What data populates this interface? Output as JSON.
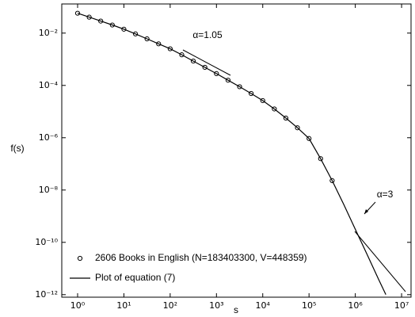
{
  "chart_data": {
    "type": "line",
    "xlabel": "s",
    "ylabel": "f(s)",
    "log_x": true,
    "log_y": true,
    "xlim": [
      0.455,
      16000000
    ],
    "ylim": [
      8e-13,
      0.13
    ],
    "xticks": [
      {
        "value": 1,
        "label": "10⁰"
      },
      {
        "value": 10,
        "label": "10¹"
      },
      {
        "value": 100,
        "label": "10²"
      },
      {
        "value": 1000,
        "label": "10³"
      },
      {
        "value": 10000,
        "label": "10⁴"
      },
      {
        "value": 100000,
        "label": "10⁵"
      },
      {
        "value": 1000000,
        "label": "10⁶"
      },
      {
        "value": 10000000,
        "label": "10⁷"
      }
    ],
    "yticks": [
      {
        "value": 1e-12,
        "label": "10⁻¹²"
      },
      {
        "value": 1e-10,
        "label": "10⁻¹⁰"
      },
      {
        "value": 1e-08,
        "label": "10⁻⁸"
      },
      {
        "value": 1e-06,
        "label": "10⁻⁶"
      },
      {
        "value": 0.0001,
        "label": "10⁻⁴"
      },
      {
        "value": 0.01,
        "label": "10⁻²"
      }
    ],
    "legend": "lower left",
    "series": [
      {
        "name": "2606 Books in English (N=183403300, V=448359)",
        "color": "#000000",
        "mode": "markers",
        "x": [
          1,
          1.78,
          3.16,
          5.62,
          10,
          17.8,
          31.6,
          56.2,
          100,
          178,
          316,
          562,
          1000,
          1780,
          3160,
          5620,
          10000,
          17800,
          31600,
          56200,
          100000,
          178000,
          316000
        ],
        "values": [
          0.0575,
          0.0407,
          0.0288,
          0.0204,
          0.0141,
          0.00933,
          0.00603,
          0.00389,
          0.00251,
          0.00148,
          0.000851,
          0.00049,
          0.000282,
          0.000158,
          8.91e-05,
          4.9e-05,
          2.63e-05,
          1.26e-05,
          5.62e-06,
          2.4e-06,
          9.33e-07,
          1.58e-07,
          2.29e-08
        ]
      },
      {
        "name": "Plot of equation (7)",
        "color": "#000000",
        "mode": "line",
        "x": [
          1,
          1.78,
          3.16,
          5.62,
          10,
          17.8,
          31.6,
          56.2,
          100,
          178,
          316,
          562,
          1000,
          1780,
          3160,
          5620,
          10000,
          17800,
          31600,
          56200,
          100000,
          178000,
          316000,
          562000,
          1000000,
          1780000,
          3160000,
          4570000
        ],
        "values": [
          0.0575,
          0.0407,
          0.0288,
          0.0204,
          0.0141,
          0.00933,
          0.00603,
          0.00389,
          0.00251,
          0.00148,
          0.000851,
          0.00049,
          0.000282,
          0.000158,
          8.91e-05,
          4.9e-05,
          2.63e-05,
          1.26e-05,
          5.62e-06,
          2.4e-06,
          9.33e-07,
          1.58e-07,
          2.29e-08,
          2.82e-09,
          3.16e-10,
          3.55e-11,
          3.98e-12,
          1e-12
        ]
      }
    ],
    "annotations": [
      "α=1.05",
      "α=3"
    ]
  }
}
